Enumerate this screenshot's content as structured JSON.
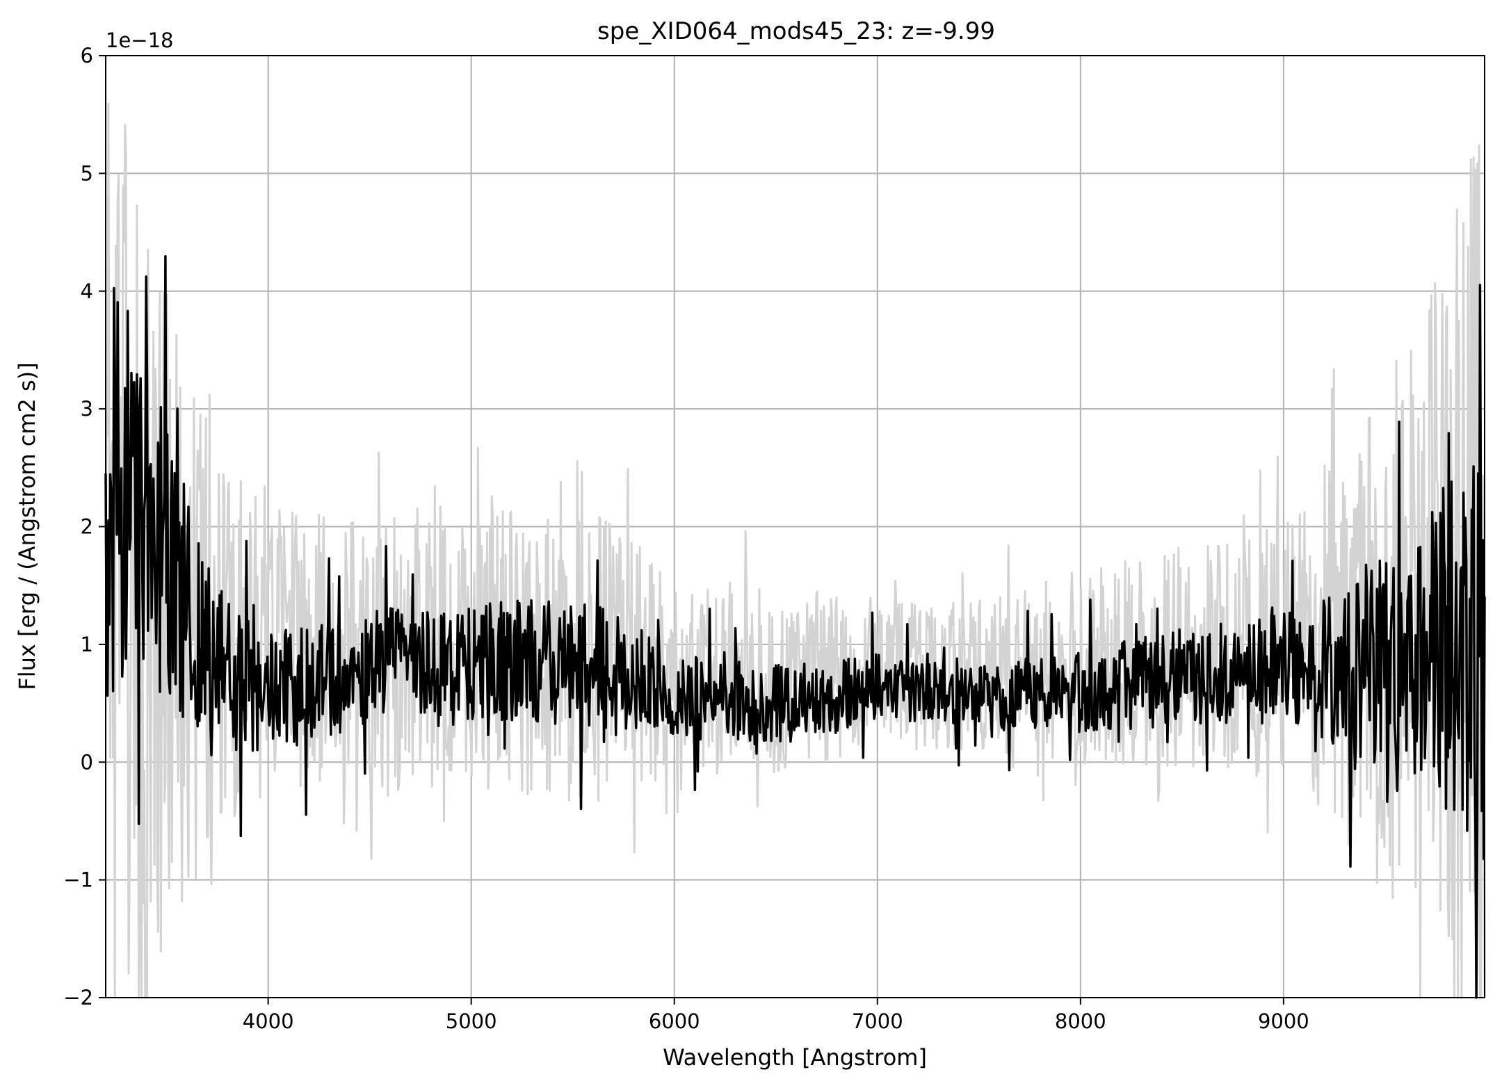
{
  "chart_data": {
    "type": "line",
    "title": "spe_XID064_mods45_23: z=-9.99",
    "xlabel": "Wavelength [Angstrom]",
    "ylabel": "Flux [erg / (Angstrom cm2 s)]",
    "y_offset_label": "1e−18",
    "xlim": [
      3200,
      9990
    ],
    "ylim": [
      -2,
      6
    ],
    "x_ticks": [
      4000,
      5000,
      6000,
      7000,
      8000,
      9000
    ],
    "x_tick_labels": [
      "4000",
      "5000",
      "6000",
      "7000",
      "8000",
      "9000"
    ],
    "y_ticks": [
      -2,
      -1,
      0,
      1,
      2,
      3,
      4,
      5,
      6
    ],
    "y_tick_labels": [
      "−2",
      "−1",
      "0",
      "1",
      "2",
      "3",
      "4",
      "5",
      "6"
    ],
    "grid": true,
    "legend": "none",
    "series": [
      {
        "role": "uncertainty-envelope",
        "color": "#d3d3d3",
        "x": [
          3200,
          3300,
          3400,
          3500,
          3600,
          3700,
          3800,
          4000,
          4200,
          4400,
          4600,
          4800,
          5000,
          5200,
          5400,
          5600,
          5800,
          6000,
          6200,
          6400,
          6600,
          6800,
          7000,
          7200,
          7400,
          7600,
          7800,
          8000,
          8200,
          8400,
          8600,
          8800,
          9000,
          9200,
          9400,
          9600,
          9800,
          9990
        ],
        "y_lo": [
          -5.0,
          -4.0,
          -3.5,
          -2.8,
          -2.0,
          -1.4,
          -1.0,
          -0.7,
          -0.6,
          -0.6,
          -0.7,
          -0.7,
          -0.7,
          -0.7,
          -0.75,
          -0.8,
          -0.6,
          -0.45,
          -0.4,
          -0.4,
          -0.35,
          -0.25,
          -0.1,
          -0.1,
          -0.1,
          -0.15,
          -0.2,
          -0.3,
          -0.35,
          -0.4,
          -0.45,
          -0.45,
          -0.5,
          -0.9,
          -1.6,
          -2.0,
          -3.0,
          -4.5
        ],
        "y_hi": [
          8.0,
          7.0,
          6.0,
          5.0,
          4.0,
          3.4,
          3.0,
          2.6,
          2.5,
          2.5,
          2.5,
          2.5,
          2.5,
          2.55,
          2.55,
          2.55,
          2.3,
          1.9,
          1.8,
          1.8,
          1.75,
          1.7,
          1.6,
          1.55,
          1.6,
          1.7,
          1.8,
          1.9,
          2.0,
          2.1,
          2.2,
          2.25,
          2.4,
          2.9,
          3.6,
          4.3,
          5.5,
          7.0
        ]
      },
      {
        "role": "flux",
        "color": "#000000",
        "x": [
          3200,
          3300,
          3400,
          3500,
          3600,
          3700,
          3800,
          4000,
          4200,
          4400,
          4600,
          4800,
          5000,
          5200,
          5400,
          5600,
          5800,
          6000,
          6200,
          6400,
          6600,
          6800,
          7000,
          7200,
          7400,
          7600,
          7800,
          8000,
          8200,
          8400,
          8600,
          8800,
          9000,
          9200,
          9400,
          9600,
          9800,
          9990
        ],
        "y": [
          2.0,
          2.2,
          2.0,
          1.8,
          1.3,
          1.0,
          0.75,
          0.6,
          0.65,
          0.75,
          0.8,
          0.8,
          0.85,
          0.85,
          0.85,
          0.8,
          0.75,
          0.6,
          0.5,
          0.5,
          0.5,
          0.55,
          0.65,
          0.6,
          0.55,
          0.55,
          0.6,
          0.6,
          0.65,
          0.7,
          0.75,
          0.75,
          0.8,
          0.8,
          0.85,
          0.9,
          1.1,
          0.8
        ]
      }
    ]
  }
}
